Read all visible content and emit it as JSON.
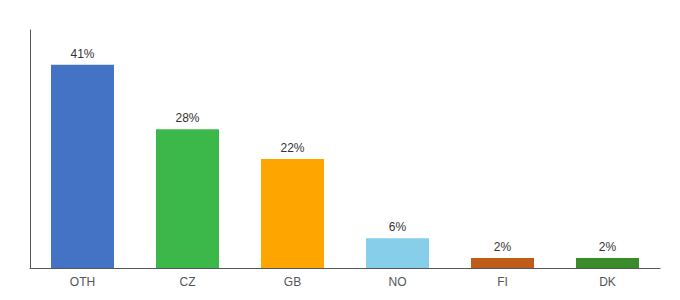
{
  "chart_data": {
    "type": "bar",
    "categories": [
      "OTH",
      "CZ",
      "GB",
      "NO",
      "FI",
      "DK"
    ],
    "values": [
      41,
      28,
      22,
      6,
      2,
      2
    ],
    "value_labels": [
      "41%",
      "28%",
      "22%",
      "6%",
      "2%",
      "2%"
    ],
    "colors": [
      "#4472C4",
      "#3CB84A",
      "#FFA500",
      "#87CEEB",
      "#C05C1A",
      "#3A8C2A"
    ],
    "ylim": [
      0,
      48
    ],
    "data_labels": true,
    "tick_labels": "x",
    "grid": false
  }
}
